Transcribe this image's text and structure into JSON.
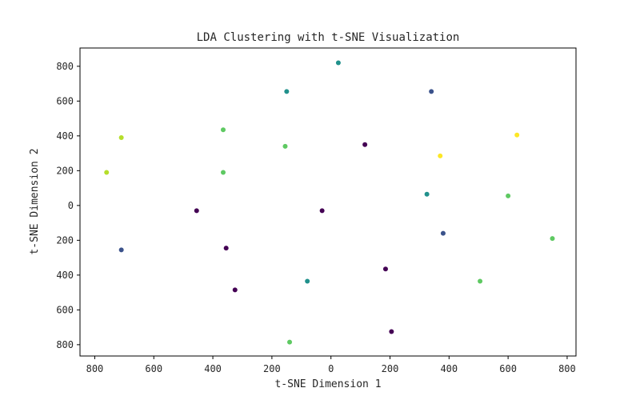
{
  "chart_data": {
    "type": "scatter",
    "title": "LDA Clustering with t-SNE Visualization",
    "xlabel": "t-SNE Dimension 1",
    "ylabel": "t-SNE Dimension 2",
    "xlim": [
      -850,
      830
    ],
    "ylim": [
      -865,
      905
    ],
    "xticks": [
      -800,
      -600,
      -400,
      -200,
      0,
      200,
      400,
      600,
      800
    ],
    "xtick_labels": [
      "800",
      "600",
      "400",
      "200",
      "0",
      "200",
      "400",
      "600",
      "800"
    ],
    "yticks": [
      800,
      600,
      400,
      200,
      0,
      -200,
      -400,
      -600,
      -800
    ],
    "ytick_labels": [
      "800",
      "600",
      "400",
      "200",
      "0",
      "200",
      "400",
      "600",
      "800"
    ],
    "colormap": "viridis",
    "grid": false,
    "legend": "none",
    "points": [
      {
        "x": 25,
        "y": 820,
        "color": "#21918c"
      },
      {
        "x": -150,
        "y": 655,
        "color": "#21918c"
      },
      {
        "x": 340,
        "y": 655,
        "color": "#3b528b"
      },
      {
        "x": -365,
        "y": 435,
        "color": "#5ec962"
      },
      {
        "x": -710,
        "y": 390,
        "color": "#b5de2b"
      },
      {
        "x": 630,
        "y": 405,
        "color": "#fde725"
      },
      {
        "x": 115,
        "y": 350,
        "color": "#440154"
      },
      {
        "x": -155,
        "y": 340,
        "color": "#5ec962"
      },
      {
        "x": 370,
        "y": 285,
        "color": "#fde725"
      },
      {
        "x": -760,
        "y": 190,
        "color": "#b5de2b"
      },
      {
        "x": -365,
        "y": 190,
        "color": "#5ec962"
      },
      {
        "x": 325,
        "y": 65,
        "color": "#21918c"
      },
      {
        "x": 600,
        "y": 55,
        "color": "#5ec962"
      },
      {
        "x": -455,
        "y": -30,
        "color": "#440154"
      },
      {
        "x": -30,
        "y": -30,
        "color": "#440154"
      },
      {
        "x": 380,
        "y": -160,
        "color": "#3b528b"
      },
      {
        "x": 750,
        "y": -190,
        "color": "#5ec962"
      },
      {
        "x": -710,
        "y": -255,
        "color": "#3b528b"
      },
      {
        "x": -355,
        "y": -245,
        "color": "#440154"
      },
      {
        "x": 185,
        "y": -365,
        "color": "#440154"
      },
      {
        "x": -80,
        "y": -435,
        "color": "#21918c"
      },
      {
        "x": 505,
        "y": -435,
        "color": "#5ec962"
      },
      {
        "x": -325,
        "y": -485,
        "color": "#440154"
      },
      {
        "x": 205,
        "y": -725,
        "color": "#440154"
      },
      {
        "x": -140,
        "y": -785,
        "color": "#5ec962"
      }
    ]
  }
}
